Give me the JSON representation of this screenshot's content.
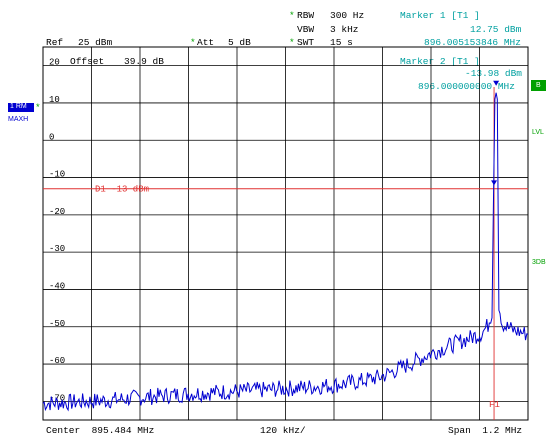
{
  "colors": {
    "grid": "#000000",
    "trace": "#0000d0",
    "display_line": "#e03030",
    "marker_line": "#e03030",
    "marker_text": "#00a0a0",
    "softkey_green": "#00a000",
    "trace_badge_bg": "#0000d0"
  },
  "header": {
    "rbw_label": "RBW",
    "rbw_value": "300 Hz",
    "vbw_label": "VBW",
    "vbw_value": "3 kHz",
    "swt_label": "SWT",
    "swt_value": "15 s",
    "ref_label": "Ref",
    "ref_value": "25 dBm",
    "att_label": "Att",
    "att_value": "5 dB",
    "offset_label": "Offset",
    "offset_value": "39.9 dB",
    "star": "*"
  },
  "markers": {
    "m1_title": "Marker 1 [T1 ]",
    "m1_level": "12.75 dBm",
    "m1_freq": "896.005153846 MHz",
    "m2_title": "Marker 2 [T1 ]",
    "m2_level": "-13.98 dBm",
    "m2_freq": "896.000000000 MHz"
  },
  "left_badges": {
    "trace_badge_top": "1 RM",
    "trace_badge_bottom": "MAXH",
    "star": "*"
  },
  "right_labels": {
    "b_box": "B",
    "lvl": "LVL",
    "threedb": "3DB"
  },
  "footer": {
    "center": "Center  895.484 MHz",
    "div": "120 kHz/",
    "span": "Span  1.2 MHz"
  },
  "chart_data": {
    "type": "line",
    "title": "",
    "xlabel": "",
    "ylabel": "",
    "x_unit": "MHz",
    "y_unit": "dBm",
    "xlim": [
      894.884,
      896.084
    ],
    "ylim": [
      -75,
      25
    ],
    "y_ticks": [
      "20",
      "10",
      "0",
      "-10",
      "-20",
      "-30",
      "-40",
      "-50",
      "-60",
      "-70"
    ],
    "y_tick_values": [
      20,
      10,
      0,
      -10,
      -20,
      -30,
      -40,
      -50,
      -60,
      -70
    ],
    "display_line": {
      "label": "D1 -13 dBm",
      "value": -13
    },
    "marker_line_label": "F1",
    "marker_line_freq": 896.0,
    "series": [
      {
        "x": [
          894.884,
          894.94,
          895.0,
          895.06,
          895.12,
          895.18,
          895.24,
          895.3,
          895.36,
          895.42,
          895.48,
          895.54,
          895.6,
          895.66,
          895.72,
          895.76,
          895.8,
          895.84,
          895.88,
          895.92,
          895.95,
          895.97,
          895.985,
          895.995,
          896.002,
          896.005,
          896.008,
          896.012,
          896.02,
          896.03,
          896.05,
          896.084
        ],
        "y": [
          -70.5,
          -70.3,
          -70.0,
          -69.6,
          -69.0,
          -68.5,
          -68.0,
          -67.6,
          -67.3,
          -67.0,
          -66.6,
          -66.2,
          -65.7,
          -64.8,
          -63.4,
          -61.5,
          -59.5,
          -57.3,
          -55.5,
          -53.8,
          -52.6,
          -51.7,
          -49.5,
          -46.0,
          11.0,
          12.75,
          11.0,
          -44.0,
          -49.0,
          -50.0,
          -51.0,
          -52.0
        ]
      }
    ],
    "markers": [
      {
        "name": "M1",
        "x": 896.005153846,
        "y": 12.75
      },
      {
        "name": "M2",
        "x": 896.0,
        "y": -13.98
      }
    ],
    "grid": true
  }
}
